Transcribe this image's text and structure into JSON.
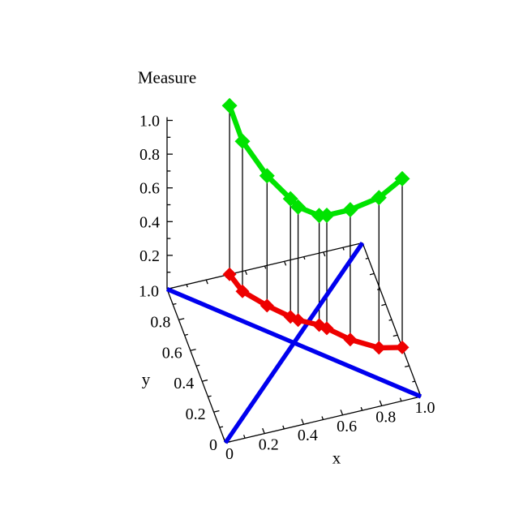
{
  "figure": {
    "background": "#FFFFFF"
  },
  "chart_data": {
    "type": "line",
    "subtype": "3d-curve-over-unit-square-base-with-projection",
    "title": "Measure",
    "xlabel": "x",
    "ylabel": "y",
    "zlabel": "Measure",
    "xlim": [
      0,
      1
    ],
    "ylim": [
      0,
      1
    ],
    "zlim": [
      0,
      1
    ],
    "x_tick_labels": [
      "0",
      "0.2",
      "0.4",
      "0.6",
      "0.8",
      "1.0"
    ],
    "y_tick_labels": [
      "0",
      "0.2",
      "0.4",
      "0.6",
      "0.8",
      "1.0"
    ],
    "z_tick_labels": [
      "0.2",
      "0.4",
      "0.6",
      "0.8",
      "1.0"
    ],
    "major_tick_step": 0.2,
    "minor_tick_step": 0.1,
    "grid": false,
    "legend": null,
    "colors": {
      "measure_curve": "#00E300",
      "base_projection_curve": "#EE0000",
      "diagonal_lines": "#0000EE",
      "axes": "#000000",
      "stems": "#000000",
      "text": "#000000"
    },
    "series": [
      {
        "name": "measure-curve",
        "role": "elevated green curve with diamond markers, measure value above each base point",
        "color_key": "measure_curve",
        "marker": "diamond",
        "points_xym": [
          [
            0.32,
            1.0,
            1.0
          ],
          [
            0.35,
            0.88,
            0.89
          ],
          [
            0.44,
            0.76,
            0.77
          ],
          [
            0.53,
            0.66,
            0.7
          ],
          [
            0.56,
            0.63,
            0.67
          ],
          [
            0.65,
            0.57,
            0.65
          ],
          [
            0.68,
            0.54,
            0.67
          ],
          [
            0.77,
            0.44,
            0.77
          ],
          [
            0.89,
            0.35,
            0.89
          ],
          [
            1.0,
            0.32,
            1.0
          ]
        ]
      },
      {
        "name": "base-projection-curve",
        "role": "red curve on base plane: same (x,y) points at measure 0",
        "color_key": "base_projection_curve",
        "marker": "diamond"
      },
      {
        "name": "diagonal-y-equals-x",
        "role": "blue line on base plane",
        "color_key": "diagonal_lines",
        "endpoints_xy": [
          [
            0,
            0
          ],
          [
            1,
            1
          ]
        ]
      },
      {
        "name": "anti-diagonal-y-equals-1-minus-x",
        "role": "blue line on base plane",
        "color_key": "diagonal_lines",
        "endpoints_xy": [
          [
            0,
            1
          ],
          [
            1,
            0
          ]
        ]
      }
    ],
    "stems": "thin vertical black drop lines from every measure-curve point down to its base-plane point"
  }
}
